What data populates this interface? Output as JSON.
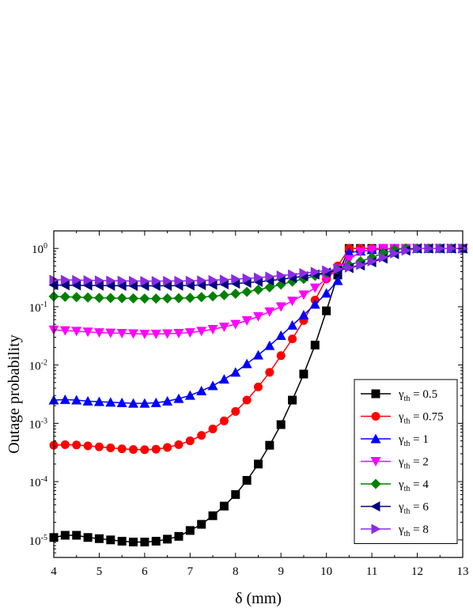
{
  "chart_data": {
    "type": "line",
    "title": "",
    "xlabel": "δ (mm)",
    "ylabel": "Outage probability",
    "x_scale": "linear",
    "y_scale": "log",
    "xlim": [
      4,
      13
    ],
    "ylim": [
      5e-06,
      2
    ],
    "x_ticks": [
      4,
      5,
      6,
      7,
      8,
      9,
      10,
      11,
      12,
      13
    ],
    "y_ticks": [
      {
        "value": 1e-05,
        "base": "10",
        "exp": "-5"
      },
      {
        "value": 0.0001,
        "base": "10",
        "exp": "-4"
      },
      {
        "value": 0.001,
        "base": "10",
        "exp": "-3"
      },
      {
        "value": 0.01,
        "base": "10",
        "exp": "-2"
      },
      {
        "value": 0.1,
        "base": "10",
        "exp": "-1"
      },
      {
        "value": 1,
        "base": "10",
        "exp": "0"
      }
    ],
    "grid": false,
    "legend_position": "lower-right",
    "x": [
      4.0,
      4.25,
      4.5,
      4.75,
      5.0,
      5.25,
      5.5,
      5.75,
      6.0,
      6.25,
      6.5,
      6.75,
      7.0,
      7.25,
      7.5,
      7.75,
      8.0,
      8.25,
      8.5,
      8.75,
      9.0,
      9.25,
      9.5,
      9.75,
      10.0,
      10.25,
      10.5,
      10.75,
      11.0,
      11.25,
      11.5,
      11.75,
      12.0,
      12.25,
      12.5,
      12.75,
      13.0
    ],
    "series": [
      {
        "name_prefix": "γ",
        "name_sub": "th",
        "name_suffix": " = 0.5",
        "color": "#000000",
        "marker": "square",
        "values": [
          1.1e-05,
          1.2e-05,
          1.2e-05,
          1.1e-05,
          1.05e-05,
          1e-05,
          9.5e-06,
          9.2e-06,
          9.2e-06,
          9.5e-06,
          1.03e-05,
          1.15e-05,
          1.45e-05,
          1.85e-05,
          2.6e-05,
          3.8e-05,
          6e-05,
          0.000105,
          0.0002,
          0.00042,
          0.00095,
          0.0025,
          0.007,
          0.022,
          0.085,
          0.35,
          1.0,
          1.0,
          1.0,
          1.0,
          1.0,
          1.0,
          1.0,
          1.0,
          1.0,
          1.0,
          1.0
        ]
      },
      {
        "name_prefix": "γ",
        "name_sub": "th",
        "name_suffix": " = 0.75",
        "color": "#ff0000",
        "marker": "circle",
        "values": [
          0.00042,
          0.00043,
          0.000425,
          0.00041,
          0.000395,
          0.00038,
          0.000365,
          0.000355,
          0.000352,
          0.00036,
          0.000385,
          0.00043,
          0.0005,
          0.00062,
          0.0008,
          0.0011,
          0.0016,
          0.0025,
          0.0042,
          0.0075,
          0.0145,
          0.028,
          0.058,
          0.13,
          0.3,
          0.5,
          1.0,
          1.0,
          1.0,
          1.0,
          1.0,
          1.0,
          1.0,
          1.0,
          1.0,
          1.0,
          1.0
        ]
      },
      {
        "name_prefix": "γ",
        "name_sub": "th",
        "name_suffix": " = 1",
        "color": "#0000ff",
        "marker": "triangle-up",
        "values": [
          0.0025,
          0.00255,
          0.0025,
          0.0024,
          0.00235,
          0.0023,
          0.00225,
          0.0022,
          0.0022,
          0.00225,
          0.0024,
          0.00265,
          0.003,
          0.0036,
          0.0044,
          0.0057,
          0.0075,
          0.0105,
          0.0148,
          0.0215,
          0.032,
          0.048,
          0.072,
          0.11,
          0.17,
          0.28,
          0.85,
          0.9,
          0.95,
          0.97,
          1.0,
          1.0,
          1.0,
          1.0,
          1.0,
          1.0,
          1.0
        ]
      },
      {
        "name_prefix": "γ",
        "name_sub": "th",
        "name_suffix": " = 2",
        "color": "#ff00ff",
        "marker": "triangle-down",
        "values": [
          0.04,
          0.039,
          0.038,
          0.037,
          0.036,
          0.0355,
          0.035,
          0.0345,
          0.034,
          0.034,
          0.0345,
          0.035,
          0.036,
          0.038,
          0.041,
          0.045,
          0.05,
          0.058,
          0.068,
          0.082,
          0.1,
          0.125,
          0.16,
          0.21,
          0.3,
          0.45,
          0.65,
          0.88,
          0.95,
          1.0,
          1.0,
          1.0,
          1.0,
          1.0,
          1.0,
          1.0,
          1.0
        ]
      },
      {
        "name_prefix": "γ",
        "name_sub": "th",
        "name_suffix": " = 4",
        "color": "#008000",
        "marker": "diamond",
        "values": [
          0.15,
          0.148,
          0.146,
          0.144,
          0.142,
          0.141,
          0.14,
          0.139,
          0.138,
          0.138,
          0.139,
          0.14,
          0.142,
          0.146,
          0.151,
          0.158,
          0.167,
          0.18,
          0.196,
          0.215,
          0.24,
          0.27,
          0.3,
          0.34,
          0.38,
          0.44,
          0.52,
          0.6,
          0.7,
          0.83,
          0.95,
          1.0,
          1.0,
          1.0,
          1.0,
          1.0,
          1.0
        ]
      },
      {
        "name_prefix": "γ",
        "name_sub": "th",
        "name_suffix": " = 6",
        "color": "#000080",
        "marker": "triangle-left",
        "values": [
          0.235,
          0.234,
          0.233,
          0.232,
          0.231,
          0.23,
          0.229,
          0.228,
          0.228,
          0.228,
          0.229,
          0.23,
          0.232,
          0.235,
          0.238,
          0.243,
          0.25,
          0.258,
          0.268,
          0.28,
          0.295,
          0.312,
          0.333,
          0.357,
          0.385,
          0.42,
          0.46,
          0.51,
          0.58,
          0.67,
          0.8,
          0.92,
          1.0,
          1.0,
          1.0,
          1.0,
          1.0
        ]
      },
      {
        "name_prefix": "γ",
        "name_sub": "th",
        "name_suffix": " = 8",
        "color": "#8a2be2",
        "marker": "triangle-right",
        "values": [
          0.29,
          0.288,
          0.286,
          0.284,
          0.282,
          0.28,
          0.278,
          0.276,
          0.275,
          0.275,
          0.276,
          0.277,
          0.279,
          0.282,
          0.286,
          0.291,
          0.298,
          0.306,
          0.316,
          0.328,
          0.342,
          0.358,
          0.376,
          0.396,
          0.42,
          0.44,
          0.47,
          0.52,
          0.6,
          0.7,
          0.82,
          0.92,
          1.0,
          1.0,
          1.0,
          1.0,
          1.0
        ]
      }
    ]
  }
}
